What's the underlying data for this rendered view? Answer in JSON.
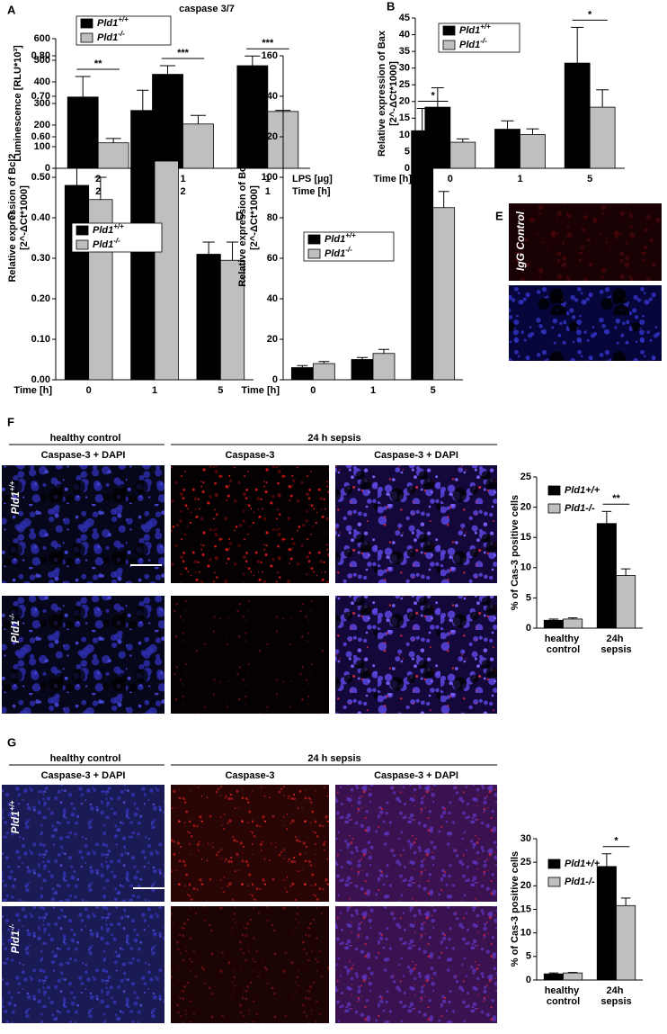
{
  "chart_data": [
    {
      "type": "bar",
      "panel_label": "A",
      "title": "caspase 3/7",
      "ylabel": [
        "Luminescence [RLU*10³]"
      ],
      "categories_label": "LPS [µg]",
      "categories": [
        "2",
        "1",
        "1"
      ],
      "categories2_label": "Time [h]",
      "categories2": [
        "2",
        "2",
        "1"
      ],
      "ylim": [
        0,
        600
      ],
      "yticks": [
        0,
        100,
        200,
        300,
        400,
        500,
        600
      ],
      "series": [
        {
          "name": "Pld1+/+",
          "color": "#000000",
          "values": [
            330,
            435,
            475
          ],
          "errors": [
            95,
            40,
            45
          ]
        },
        {
          "name": "Pld1-/-",
          "color": "#bfbfbf",
          "values": [
            118,
            205,
            263
          ],
          "errors": [
            20,
            40,
            5
          ]
        }
      ],
      "significance": [
        "**",
        "***",
        "***"
      ]
    },
    {
      "type": "bar",
      "panel_label": "B",
      "ylabel": [
        "Relative expression of Bax",
        "[2^-ΔCt*1000]"
      ],
      "categories_label": "Time [h]",
      "categories": [
        "0",
        "1",
        "5"
      ],
      "ylim": [
        0,
        45
      ],
      "yticks": [
        0,
        5,
        10,
        15,
        20,
        25,
        30,
        35,
        40,
        45
      ],
      "series": [
        {
          "name": "Pld1+/+",
          "color": "#000000",
          "values": [
            18.3,
            11.7,
            31.5
          ],
          "errors": [
            5.8,
            2.5,
            10.7
          ]
        },
        {
          "name": "Pld1-/-",
          "color": "#bfbfbf",
          "values": [
            7.8,
            10.1,
            18.3
          ],
          "errors": [
            1.0,
            1.7,
            5.2
          ]
        }
      ],
      "significance": [
        null,
        null,
        "*"
      ]
    },
    {
      "type": "bar",
      "panel_label": "C",
      "ylabel": [
        "Relative expression of Bcl2",
        "[2^-ΔCt*1000]"
      ],
      "categories_label": "Time [h]",
      "categories": [
        "0",
        "1",
        "5"
      ],
      "ylim": [
        0,
        0.8
      ],
      "yticks": [
        {
          "value": 0,
          "label": "0.00"
        },
        {
          "value": 0.1,
          "label": "0.10"
        },
        {
          "value": 0.2,
          "label": "0.20"
        },
        {
          "value": 0.3,
          "label": "0.30"
        },
        {
          "value": 0.4,
          "label": "0.40"
        },
        {
          "value": 0.5,
          "label": "0.50"
        },
        {
          "value": 0.6,
          "label": "0.60"
        },
        {
          "value": 0.7,
          "label": "0.70"
        },
        {
          "value": 0.8,
          "label": "0.80"
        }
      ],
      "series": [
        {
          "name": "Pld1+/+",
          "color": "#000000",
          "values": [
            0.48,
            0.665,
            0.31
          ],
          "errors": [
            0.045,
            0.05,
            0.03
          ]
        },
        {
          "name": "Pld1-/-",
          "color": "#bfbfbf",
          "values": [
            0.445,
            0.54,
            0.295
          ],
          "errors": [
            0.055,
            0.06,
            0.045
          ]
        }
      ]
    },
    {
      "type": "bar",
      "panel_label": "D",
      "ylabel": [
        "Relative expression of Bcl-xL",
        "[2^-ΔCt*1000]"
      ],
      "categories_label": "Time [h]",
      "categories": [
        "0",
        "1",
        "5"
      ],
      "ylim": [
        0,
        160
      ],
      "yticks": [
        0,
        20,
        40,
        60,
        80,
        100,
        120,
        140,
        160
      ],
      "series": [
        {
          "name": "Pld1+/+",
          "color": "#000000",
          "values": [
            6,
            10,
            123
          ],
          "errors": [
            1,
            1,
            11
          ]
        },
        {
          "name": "Pld1-/-",
          "color": "#bfbfbf",
          "values": [
            8,
            13,
            85
          ],
          "errors": [
            1,
            2,
            8
          ]
        }
      ],
      "significance": [
        null,
        null,
        "*"
      ]
    },
    {
      "type": "bar",
      "ylabel": [
        "% of Cas-3 positive cells"
      ],
      "categories": [
        "healthy control",
        "24h sepsis"
      ],
      "ylim": [
        0,
        25
      ],
      "yticks": [
        0,
        5,
        10,
        15,
        20,
        25
      ],
      "series": [
        {
          "name": "Pld1+/+",
          "color": "#000000",
          "values": [
            1.3,
            17.3
          ],
          "errors": [
            0.2,
            2.0
          ]
        },
        {
          "name": "Pld1-/-",
          "color": "#bfbfbf",
          "values": [
            1.5,
            8.7
          ],
          "errors": [
            0.2,
            1.1
          ]
        }
      ],
      "significance": [
        null,
        "**"
      ]
    },
    {
      "type": "bar",
      "ylabel": [
        "% of Cas-3 positive cells"
      ],
      "categories": [
        "healthy control",
        "24h sepsis"
      ],
      "ylim": [
        0,
        30
      ],
      "yticks": [
        0,
        5,
        10,
        15,
        20,
        25,
        30
      ],
      "series": [
        {
          "name": "Pld1+/+",
          "color": "#000000",
          "values": [
            1.3,
            24.1
          ],
          "errors": [
            0.2,
            2.7
          ]
        },
        {
          "name": "Pld1-/-",
          "color": "#bfbfbf",
          "values": [
            1.5,
            15.8
          ],
          "errors": [
            0.1,
            1.6
          ]
        }
      ],
      "significance": [
        null,
        "*"
      ]
    }
  ],
  "panels": {
    "E": {
      "label": "E",
      "image_label": "IgG Control"
    },
    "F": {
      "label": "F",
      "group_headers": [
        "healthy control",
        "24 h sepsis"
      ],
      "column_titles": [
        "Caspase-3 + DAPI",
        "Caspase-3",
        "Caspase-3 + DAPI"
      ],
      "row_labels": [
        "Pld1+/+",
        "Pld1-/-"
      ]
    },
    "G": {
      "label": "G",
      "group_headers": [
        "healthy control",
        "24 h sepsis"
      ],
      "column_titles": [
        "Caspase-3 + DAPI",
        "Caspase-3",
        "Caspase-3 + DAPI"
      ],
      "row_labels": [
        "Pld1+/+",
        "Pld1-/-"
      ]
    }
  }
}
